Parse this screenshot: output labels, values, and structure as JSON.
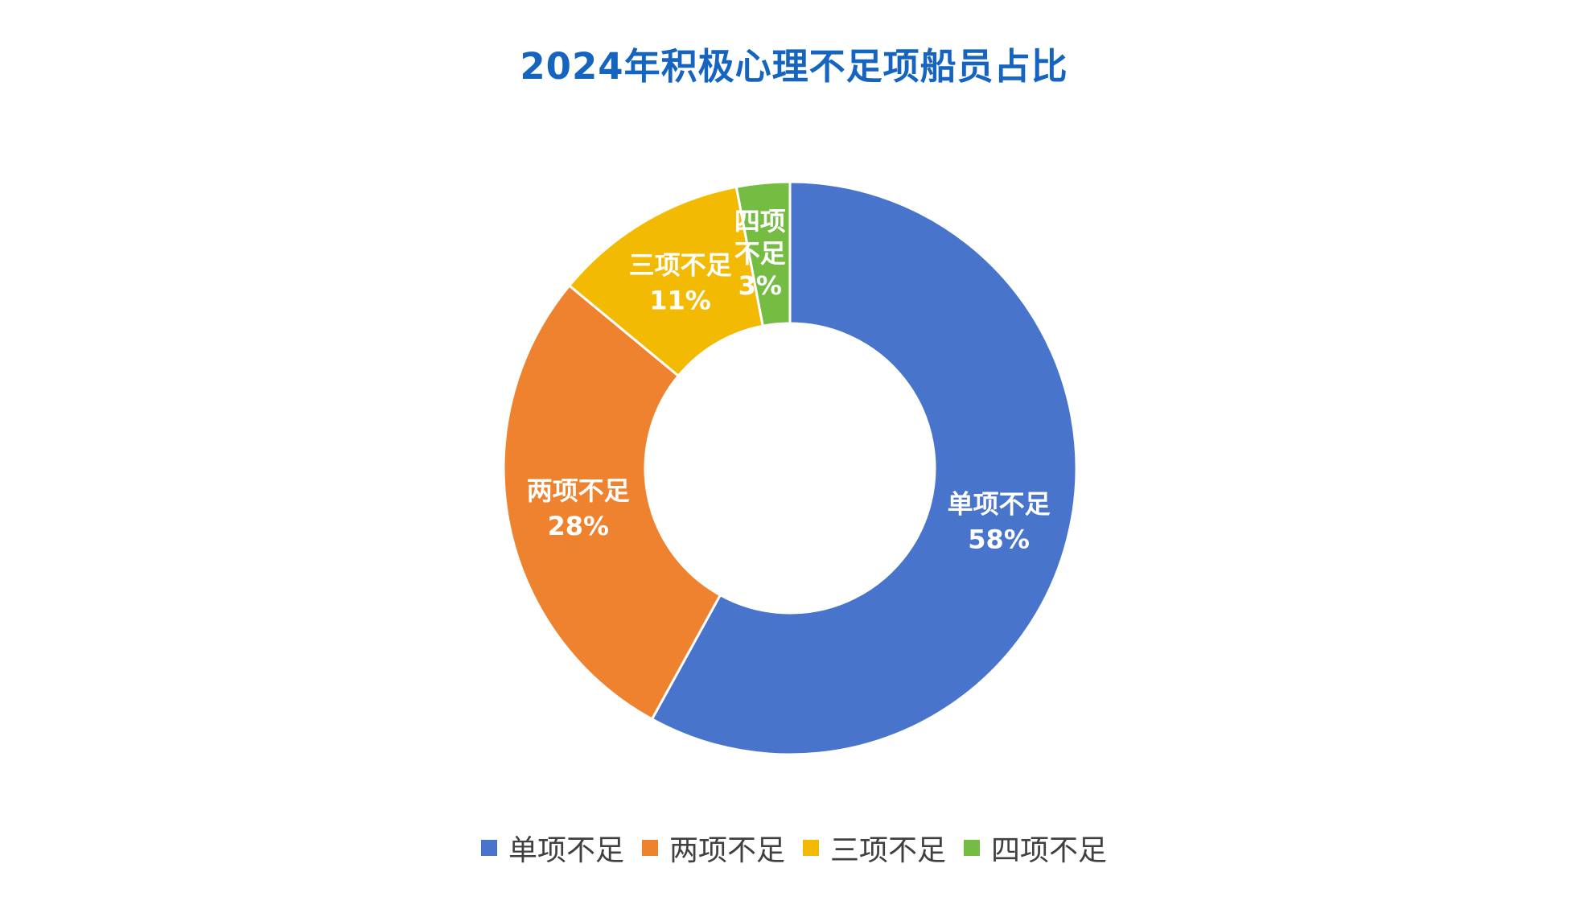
{
  "chart_data": {
    "type": "pie",
    "title": "2024年积极心理不足项船员占比",
    "categories": [
      "单项不足",
      "两项不足",
      "三项不足",
      "四项不足"
    ],
    "values": [
      58,
      28,
      11,
      3
    ],
    "value_labels": [
      "58%",
      "28%",
      "11%",
      "3%"
    ],
    "colors": [
      "#4874CB",
      "#EE822F",
      "#F2BA02",
      "#75BD42"
    ],
    "donut": true,
    "legend": "bottom"
  }
}
